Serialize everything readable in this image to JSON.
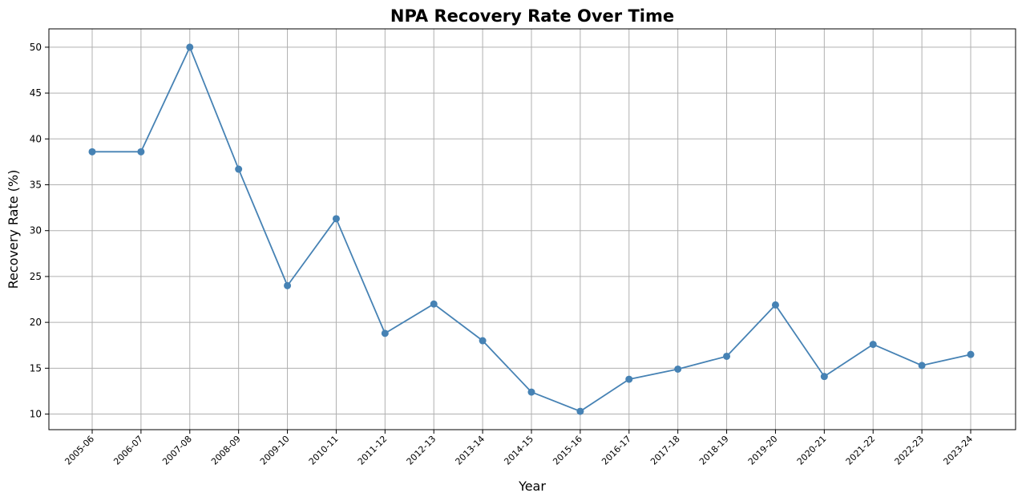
{
  "chart_data": {
    "type": "line",
    "title": "NPA Recovery Rate Over Time",
    "xlabel": "Year",
    "ylabel": "Recovery Rate (%)",
    "categories": [
      "2005-06",
      "2006-07",
      "2007-08",
      "2008-09",
      "2009-10",
      "2010-11",
      "2011-12",
      "2012-13",
      "2013-14",
      "2014-15",
      "2015-16",
      "2016-17",
      "2017-18",
      "2018-19",
      "2019-20",
      "2020-21",
      "2021-22",
      "2022-23",
      "2023-24"
    ],
    "series": [
      {
        "values": [
          38.6,
          38.6,
          50.0,
          36.7,
          24.0,
          31.3,
          18.8,
          22.0,
          18.0,
          12.4,
          10.3,
          13.8,
          14.9,
          16.3,
          21.9,
          14.1,
          17.6,
          15.3,
          16.5
        ],
        "color": "#4682b4",
        "marker": "circle"
      }
    ],
    "ylim": [
      8.3,
      52.0
    ],
    "yticks": [
      10,
      15,
      20,
      25,
      30,
      35,
      40,
      45,
      50
    ],
    "grid": true
  }
}
